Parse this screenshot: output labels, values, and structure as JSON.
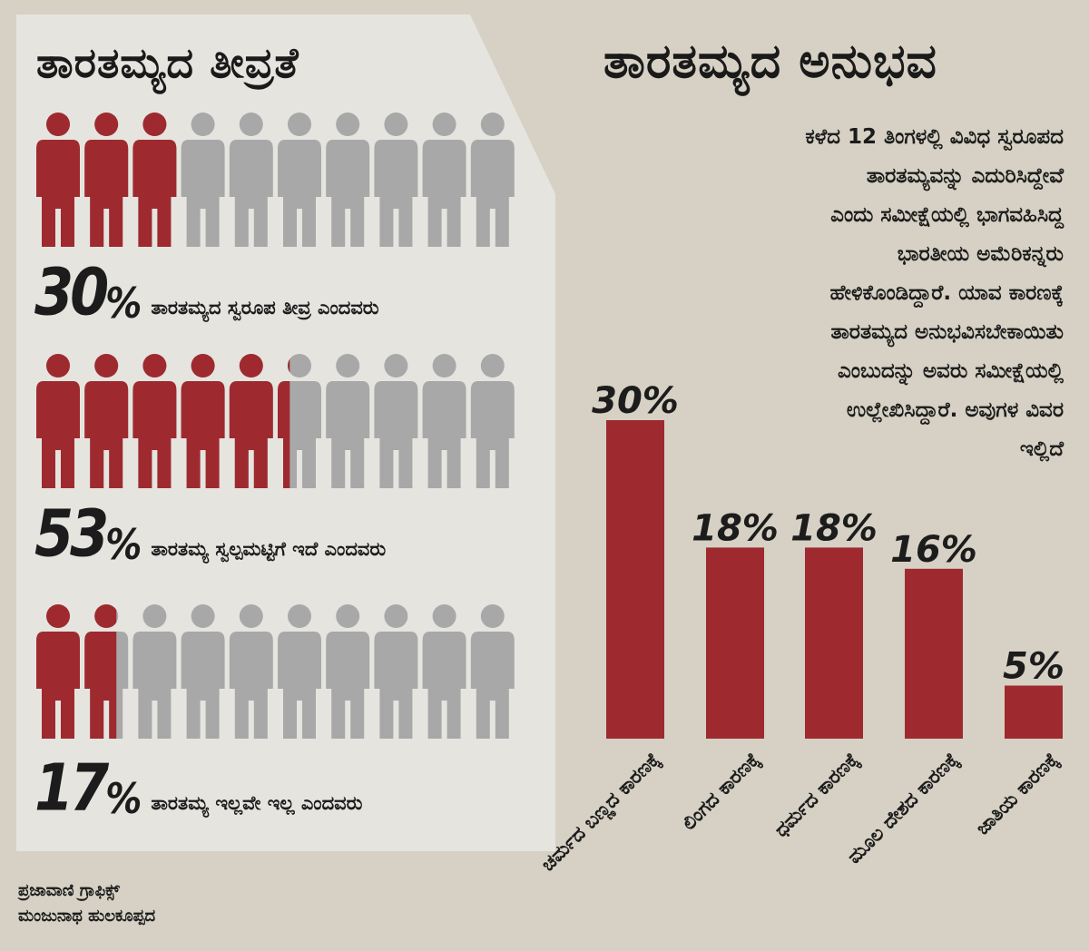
{
  "left_panel": {
    "title": "ತಾರತಮ್ಯದ ತೀವ್ರತೆ",
    "rows": [
      {
        "number": "30",
        "sign": "%",
        "label": "ತಾರತಮ್ಯದ ಸ್ವರೂಪ ತೀವ್ರ ಎಂದವರು",
        "fraction_filled": 0.3
      },
      {
        "number": "53",
        "sign": "%",
        "label": "ತಾರತಮ್ಯ ಸ್ವಲ್ಪಮಟ್ಟಿಗೆ ಇದೆ ಎಂದವರು",
        "fraction_filled": 0.53
      },
      {
        "number": "17",
        "sign": "%",
        "label": "ತಾರತಮ್ಯ ಇಲ್ಲವೇ ಇಲ್ಲ ಎಂದವರು",
        "fraction_filled": 0.17
      }
    ],
    "figures_per_row": 10,
    "colors": {
      "filled": "#9e2a2f",
      "empty": "#a8a8a8",
      "panel": "#e6e4df"
    }
  },
  "right_panel": {
    "title": "ತಾರತಮ್ಯದ ಅನುಭವ",
    "intro_lines": [
      "ಕಳೆದ 12 ತಿಂಗಳಲ್ಲಿ ವಿವಿಧ ಸ್ವರೂಪದ",
      "ತಾರತಮ್ಯವನ್ನು ಎದುರಿಸಿದ್ದೇವೆ",
      "ಎಂದು ಸಮೀಕ್ಷೆಯಲ್ಲಿ ಭಾಗವಹಿಸಿದ್ದ",
      "ಭಾರತೀಯ ಅಮೆರಿಕನ್ನರು",
      "ಹೇಳಿಕೊಂಡಿದ್ದಾರೆ. ಯಾವ ಕಾರಣಕ್ಕೆ",
      "ತಾರತಮ್ಯದ ಅನುಭವಿಸಬೇಕಾಯಿತು",
      "ಎಂಬುದನ್ನು ಅವರು ಸಮೀಕ್ಷೆಯಲ್ಲಿ",
      "ಉಲ್ಲೇಖಿಸಿದ್ದಾರೆ. ಅವುಗಳ ವಿವರ",
      "ಇಲ್ಲಿದೆ"
    ]
  },
  "chart_data": {
    "type": "bar",
    "categories": [
      "ಚರ್ಮದ ಬಣ್ಣದ ಕಾರಣಕ್ಕೆ",
      "ಲಿಂಗದ ಕಾರಣಕ್ಕೆ",
      "ಧರ್ಮದ ಕಾರಣಕ್ಕೆ",
      "ಮೂಲ ದೇಶದ ಕಾರಣಕ್ಕೆ",
      "ಜಾತಿಯ ಕಾರಣಕ್ಕೆ"
    ],
    "values": [
      30,
      18,
      18,
      16,
      5
    ],
    "value_labels": [
      "30%",
      "18%",
      "18%",
      "16%",
      "5%"
    ],
    "title": "ತಾರತಮ್ಯದ ಅನುಭವ",
    "xlabel": "",
    "ylabel": "",
    "ylim": [
      0,
      30
    ],
    "grid": false,
    "bar_color": "#9e2a2f"
  },
  "credit": {
    "line1": "ಪ್ರಜಾವಾಣಿ ಗ್ರಾಫಿಕ್ಸ್",
    "line2": "ಮಂಜುನಾಥ ಹುಲಕೂಪ್ಪದ"
  }
}
